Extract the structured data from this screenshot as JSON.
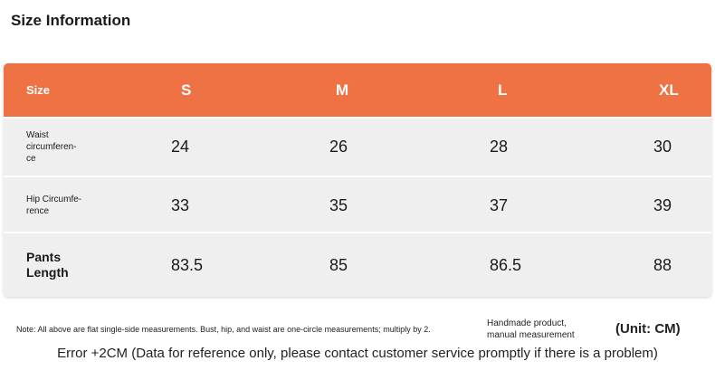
{
  "title": "Size Information",
  "table": {
    "header": {
      "label": "Size",
      "sizes": [
        "S",
        "M",
        "L",
        "XL"
      ]
    },
    "rows": [
      {
        "label_lines": [
          "Waist",
          "circumferen-",
          "ce"
        ],
        "values": [
          "24",
          "26",
          "28",
          "30"
        ]
      },
      {
        "label_lines": [
          "Hip Circumfe-",
          "rence"
        ],
        "values": [
          "33",
          "35",
          "37",
          "39"
        ]
      },
      {
        "label_lines": [
          "Pants",
          "Length"
        ],
        "values": [
          "83.5",
          "85",
          "86.5",
          "88"
        ]
      }
    ]
  },
  "notes": {
    "measurement_note": "Note: All above are flat single-side measurements. Bust, hip, and waist are one-circle measurements; multiply by 2.",
    "handmade_lines": [
      "Handmade product,",
      "manual measurement"
    ],
    "unit": "(Unit: CM)",
    "error": "Error +2CM (Data for reference only, please contact customer service promptly if there is a problem)"
  },
  "colors": {
    "header_bg": "#ee7244",
    "row_bg": "#efefef"
  }
}
